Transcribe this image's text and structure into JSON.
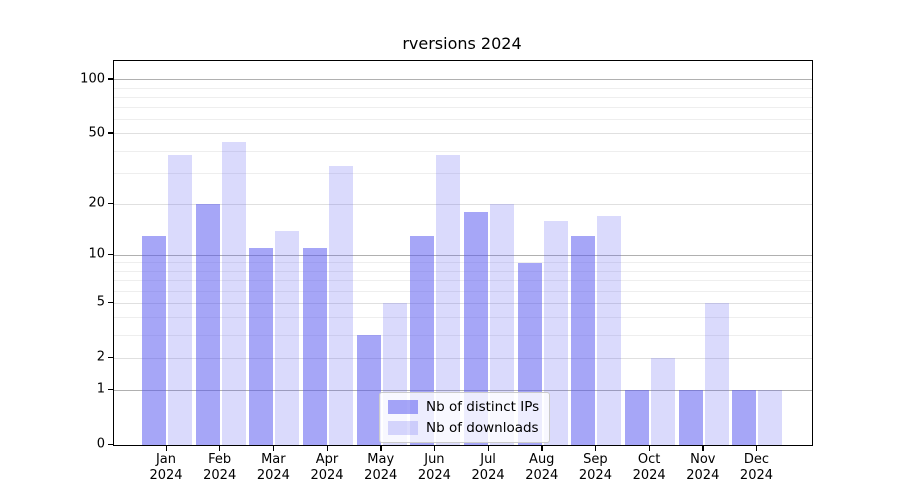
{
  "chart_data": {
    "type": "bar",
    "title": "rversions 2024",
    "scale": "log1p",
    "grid": true,
    "legend_position": "bottom-center",
    "categories": [
      "Jan 2024",
      "Feb 2024",
      "Mar 2024",
      "Apr 2024",
      "May 2024",
      "Jun 2024",
      "Jul 2024",
      "Aug 2024",
      "Sep 2024",
      "Oct 2024",
      "Nov 2024",
      "Dec 2024"
    ],
    "series": [
      {
        "name": "Nb of distinct IPs",
        "color": "rgba(85,85,240,0.52)",
        "values": [
          13,
          20,
          11,
          11,
          3,
          13,
          18,
          9,
          13,
          1,
          1,
          1
        ]
      },
      {
        "name": "Nb of downloads",
        "color": "rgba(85,85,240,0.22)",
        "values": [
          38,
          45,
          14,
          33,
          5,
          38,
          20,
          16,
          17,
          2,
          5,
          1
        ]
      }
    ],
    "y_axis": {
      "tick_values": [
        100,
        50,
        20,
        10,
        5,
        2,
        1,
        0
      ],
      "tick_labels": [
        "100",
        "50",
        "20",
        "10",
        "5",
        "2",
        "1",
        "0"
      ],
      "decade_gridlines": [
        1,
        10,
        100
      ],
      "labeled_gridlines": [
        2,
        5,
        20,
        50
      ],
      "minor_gridlines": [
        3,
        4,
        6,
        7,
        8,
        9,
        30,
        40,
        60,
        70,
        80,
        90
      ],
      "top_value": 127.3
    },
    "colors": {
      "grid_decade": "#b0b0b0",
      "grid_labeled": "#e0e0e0",
      "grid_minor": "#eeeeee",
      "spine": "#000000",
      "background": "#ffffff"
    }
  }
}
